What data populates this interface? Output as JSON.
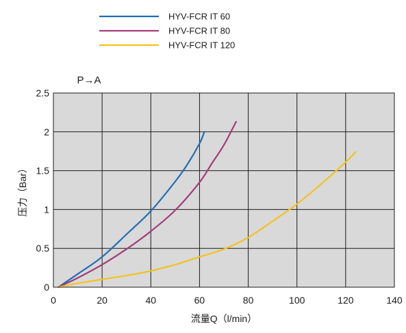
{
  "chart_data": {
    "type": "line",
    "subtitle": "P→A",
    "xlabel": "流量Q（l/min）",
    "ylabel": "压力（Bar）",
    "xlim": [
      0,
      140
    ],
    "ylim": [
      0,
      2.5
    ],
    "xticks": [
      0,
      20,
      40,
      60,
      80,
      100,
      120,
      140
    ],
    "yticks": [
      0,
      0.5,
      1,
      1.5,
      2,
      2.5
    ],
    "xtick_labels": [
      "0",
      "20",
      "40",
      "60",
      "80",
      "100",
      "120",
      "140"
    ],
    "ytick_labels": [
      "0",
      "0.5",
      "1",
      "1.5",
      "2",
      "2.5"
    ],
    "grid": true,
    "legend_position": "top",
    "series": [
      {
        "name": "HYV-FCR IT 60",
        "color": "#1f6db5",
        "x": [
          2,
          10,
          20,
          30,
          40,
          50,
          55,
          60,
          62
        ],
        "y": [
          0,
          0.17,
          0.39,
          0.68,
          0.98,
          1.36,
          1.58,
          1.85,
          2.0
        ]
      },
      {
        "name": "HYV-FCR IT 80",
        "color": "#a13c78",
        "x": [
          2,
          10,
          20,
          30,
          40,
          50,
          60,
          65,
          70,
          75
        ],
        "y": [
          0,
          0.12,
          0.29,
          0.49,
          0.72,
          0.99,
          1.35,
          1.59,
          1.83,
          2.13
        ]
      },
      {
        "name": "HYV-FCR IT 120",
        "color": "#f2c31e",
        "x": [
          2,
          10,
          20,
          30,
          40,
          50,
          60,
          70,
          80,
          90,
          100,
          110,
          120,
          124
        ],
        "y": [
          0,
          0.05,
          0.1,
          0.15,
          0.21,
          0.29,
          0.39,
          0.49,
          0.64,
          0.85,
          1.07,
          1.33,
          1.61,
          1.74
        ]
      }
    ]
  }
}
